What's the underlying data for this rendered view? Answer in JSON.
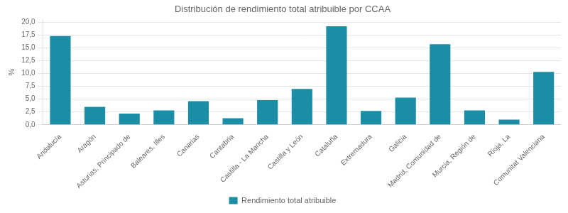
{
  "chart_data": {
    "type": "bar",
    "title": "Distribución de rendimiento total atribuible por CCAA",
    "categories": [
      "Andalucía",
      "Aragón",
      "Asturias, Principado de",
      "Baleares, Illes",
      "Canarias",
      "Cantabria",
      "Castilla - La Mancha",
      "Castilla y León",
      "Cataluña",
      "Extremadura",
      "Galicia",
      "Madrid, Comunidad de",
      "Murcia, Región de",
      "Rioja, La",
      "Comunitat Valenciana"
    ],
    "series": [
      {
        "name": "Rendimiento total atribuible",
        "color": "#1b8ea6",
        "values": [
          17.3,
          3.5,
          2.2,
          2.8,
          4.6,
          1.3,
          4.8,
          7.0,
          19.2,
          2.7,
          5.3,
          15.7,
          2.8,
          1.0,
          10.3
        ]
      }
    ],
    "ylabel": "%",
    "ylim": [
      0,
      20.5
    ],
    "yticks": [
      {
        "value": 0.0,
        "label": "0,0"
      },
      {
        "value": 2.5,
        "label": "2,5"
      },
      {
        "value": 5.0,
        "label": "5,0"
      },
      {
        "value": 7.5,
        "label": "7,5"
      },
      {
        "value": 10.0,
        "label": "10,0"
      },
      {
        "value": 12.5,
        "label": "12,5"
      },
      {
        "value": 15.0,
        "label": "15,0"
      },
      {
        "value": 17.5,
        "label": "17,5"
      },
      {
        "value": 20.0,
        "label": "20,0"
      }
    ],
    "grid": true,
    "legend": "bottom"
  }
}
